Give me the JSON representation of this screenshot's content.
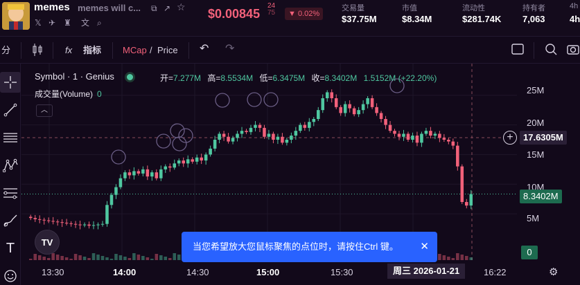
{
  "header": {
    "token_name": "memes",
    "token_full": "memes will c...",
    "price": "$0.00845",
    "price_tail_top": "24",
    "price_tail_bottom": "75",
    "change_pct": "▼ 0.02%",
    "stats": [
      {
        "label": "交易量",
        "value": "$37.75M"
      },
      {
        "label": "市值",
        "value": "$8.34M"
      },
      {
        "label": "流动性",
        "value": "$281.74K"
      },
      {
        "label": "持有者",
        "value": "7,063"
      },
      {
        "label": "4h",
        "value": "4h"
      }
    ]
  },
  "toolbar": {
    "interval": "分",
    "indicators_label": "指标",
    "mcap_label": "MCap",
    "separator": "/",
    "price_label": "Price"
  },
  "legend": {
    "symbol": "Symbol · 1 · Genius",
    "open_label": "开=",
    "open": "7.277M",
    "high_label": "高=",
    "high": "8.5534M",
    "low_label": "低=",
    "low": "6.3475M",
    "close_label": "收=",
    "close": "8.3402M",
    "change": "1.5152M (+22.20%)",
    "volume_label": "成交量(Volume)",
    "volume_value": "0"
  },
  "y_axis": {
    "ticks": [
      "25M",
      "20M",
      "15M",
      "10M",
      "5M"
    ],
    "crosshair_value": "17.6305M",
    "last_price": "8.3402M",
    "volume_last": "0"
  },
  "x_axis": {
    "ticks": [
      "13:30",
      "14:00",
      "14:30",
      "15:00",
      "15:30",
      "16:22"
    ],
    "crosshair_date": "周三 2026-01-21"
  },
  "toast": {
    "message": "当您希望放大您鼠标聚焦的点位时，请按住Ctrl 键。"
  },
  "colors": {
    "up": "#4fc7a0",
    "down": "#f2617a",
    "background": "#12091a",
    "accent_blue": "#2962ff"
  },
  "chart_data": {
    "type": "candlestick",
    "x_range": [
      "13:15",
      "16:25"
    ],
    "y_range": [
      0,
      28
    ],
    "y_unit": "M",
    "close_series_millions": [
      4.3,
      4.1,
      4.0,
      3.9,
      3.8,
      3.7,
      3.6,
      3.5,
      3.4,
      3.3,
      3.2,
      3.1,
      3.2,
      3.0,
      3.1,
      3.2,
      3.3,
      6.5,
      8.2,
      9.5,
      11.0,
      12.0,
      11.5,
      12.2,
      11.8,
      12.5,
      11.3,
      12.0,
      11.0,
      12.5,
      13.0,
      12.8,
      13.5,
      14.0,
      13.5,
      14.2,
      13.8,
      14.5,
      14.0,
      15.0,
      16.0,
      17.5,
      18.5,
      18.0,
      17.2,
      17.8,
      18.5,
      19.0,
      18.8,
      19.5,
      20.0,
      19.5,
      18.0,
      18.5,
      17.5,
      18.0,
      17.0,
      17.5,
      18.2,
      19.0,
      20.0,
      19.5,
      20.5,
      21.0,
      22.5,
      24.5,
      25.5,
      24.5,
      23.0,
      22.0,
      23.5,
      22.8,
      21.8,
      22.5,
      23.5,
      24.5,
      23.0,
      22.0,
      21.0,
      20.0,
      19.0,
      18.5,
      18.0,
      18.5,
      17.5,
      18.2,
      17.0,
      18.5,
      19.0,
      18.2,
      18.5,
      17.8,
      17.5,
      17.2,
      16.5,
      13.0,
      7.0,
      6.4,
      8.34
    ]
  }
}
